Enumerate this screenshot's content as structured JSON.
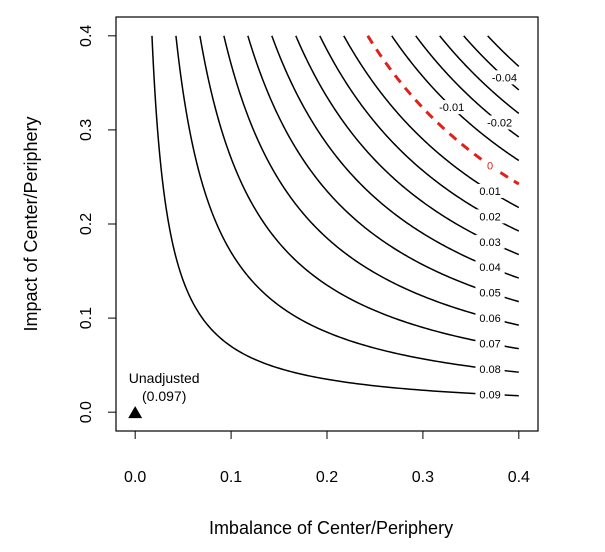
{
  "chart_data": {
    "type": "contour",
    "xlabel": "Imbalance of Center/Periphery",
    "ylabel": "Impact of Center/Periphery",
    "xlim": [
      -0.02,
      0.42
    ],
    "ylim": [
      -0.02,
      0.42
    ],
    "x_ticks": [
      0.0,
      0.1,
      0.2,
      0.3,
      0.4
    ],
    "y_ticks": [
      0.0,
      0.1,
      0.2,
      0.3,
      0.4
    ],
    "x_tick_labels": [
      "0.0",
      "0.1",
      "0.2",
      "0.3",
      "0.4"
    ],
    "y_tick_labels": [
      "0.0",
      "0.1",
      "0.2",
      "0.3",
      "0.4"
    ],
    "contour_function": "estimate = 0.097 - imbalance * impact",
    "unadjusted_estimate": 0.097,
    "contour_levels": [
      {
        "value": 0.09,
        "label": "0.09",
        "highlight": false
      },
      {
        "value": 0.08,
        "label": "0.08",
        "highlight": false
      },
      {
        "value": 0.07,
        "label": "0.07",
        "highlight": false
      },
      {
        "value": 0.06,
        "label": "0.06",
        "highlight": false
      },
      {
        "value": 0.05,
        "label": "0.05",
        "highlight": false
      },
      {
        "value": 0.04,
        "label": "0.04",
        "highlight": false
      },
      {
        "value": 0.03,
        "label": "0.03",
        "highlight": false
      },
      {
        "value": 0.02,
        "label": "0.02",
        "highlight": false
      },
      {
        "value": 0.01,
        "label": "0.01",
        "highlight": false
      },
      {
        "value": 0.0,
        "label": "0",
        "highlight": true
      },
      {
        "value": -0.01,
        "label": "-0.01",
        "highlight": false
      },
      {
        "value": -0.02,
        "label": "-0.02",
        "highlight": false
      },
      {
        "value": -0.03,
        "label": "",
        "highlight": false
      },
      {
        "value": -0.04,
        "label": "-0.04",
        "highlight": false
      },
      {
        "value": -0.05,
        "label": "",
        "highlight": false
      }
    ],
    "highlight_color": "#e0211b",
    "line_color": "#000000",
    "annotation": {
      "point": {
        "x": 0.0,
        "y": 0.0,
        "marker": "triangle"
      },
      "line1": "Unadjusted",
      "line2": "(0.097)"
    },
    "grid": false,
    "legend": "none"
  }
}
